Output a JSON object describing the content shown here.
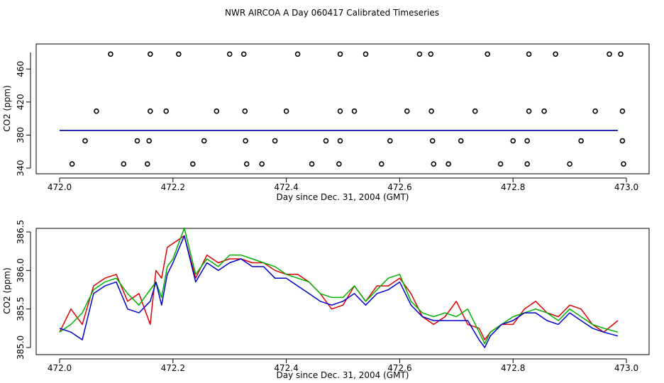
{
  "title": "NWR AIRCOA A  Day 060417  Calibrated Timeseries",
  "colors": {
    "red": "#dd0000",
    "green": "#00b000",
    "blue": "#0000cc",
    "black": "#000000"
  },
  "chart_data": [
    {
      "type": "scatter",
      "xlabel": "Day since Dec. 31, 2004 (GMT)",
      "ylabel": "CO2 (ppm)",
      "xlim": [
        472.0,
        473.0
      ],
      "ylim": [
        340,
        480
      ],
      "xticks": [
        "472.0",
        "472.2",
        "472.4",
        "472.6",
        "472.8",
        "473.0"
      ],
      "yticks": [
        "340",
        "380",
        "420",
        "460"
      ],
      "grid": false,
      "markers": {
        "x": [
          472.09,
          472.16,
          472.21,
          472.3,
          472.325,
          472.42,
          472.495,
          472.54,
          472.635,
          472.655,
          472.755,
          472.828,
          472.875,
          472.97,
          472.99,
          472.065,
          472.16,
          472.188,
          472.277,
          472.327,
          472.4,
          472.495,
          472.52,
          472.613,
          472.656,
          472.733,
          472.828,
          472.855,
          472.945,
          472.993,
          472.045,
          472.137,
          472.158,
          472.255,
          472.328,
          472.38,
          472.47,
          472.495,
          472.583,
          472.658,
          472.708,
          472.8,
          472.825,
          472.92,
          472.993,
          472.022,
          472.113,
          472.155,
          472.235,
          472.33,
          472.357,
          472.445,
          472.493,
          472.568,
          472.66,
          472.686,
          472.778,
          472.825,
          472.9,
          472.995
        ],
        "y": [
          478,
          478,
          478,
          478,
          478,
          478,
          478,
          478,
          478,
          478,
          478,
          478,
          478,
          478,
          478,
          409,
          409,
          409,
          409,
          409,
          409,
          409,
          409,
          409,
          409,
          409,
          409,
          409,
          409,
          409,
          373,
          373,
          373,
          373,
          373,
          373,
          373,
          373,
          373,
          373,
          373,
          373,
          373,
          373,
          373,
          345,
          345,
          345,
          345,
          345,
          345,
          345,
          345,
          345,
          345,
          345,
          345,
          345,
          345,
          345
        ]
      },
      "series": [
        {
          "color": "#dd0000",
          "x": [
            472.0,
            472.985
          ],
          "y": [
            385.6,
            385.6
          ]
        },
        {
          "color": "#00b000",
          "x": [
            472.0,
            472.985
          ],
          "y": [
            385.6,
            385.6
          ]
        },
        {
          "color": "#0000cc",
          "x": [
            472.0,
            472.985
          ],
          "y": [
            385.6,
            385.6
          ]
        }
      ]
    },
    {
      "type": "line",
      "xlabel": "Day since Dec. 31, 2004 (GMT)",
      "ylabel": "CO2 (ppm)",
      "xlim": [
        472.0,
        473.0
      ],
      "ylim": [
        385.0,
        386.5
      ],
      "xticks": [
        "472.0",
        "472.2",
        "472.4",
        "472.6",
        "472.8",
        "473.0"
      ],
      "yticks": [
        "385.0",
        "385.5",
        "386.0",
        "386.5"
      ],
      "grid": false,
      "series": [
        {
          "color": "#dd0000",
          "x": [
            472.0,
            472.02,
            472.04,
            472.06,
            472.08,
            472.1,
            472.12,
            472.14,
            472.16,
            472.17,
            472.18,
            472.19,
            472.2,
            472.22,
            472.24,
            472.26,
            472.28,
            472.3,
            472.32,
            472.34,
            472.36,
            472.38,
            472.4,
            472.42,
            472.44,
            472.46,
            472.48,
            472.5,
            472.52,
            472.54,
            472.56,
            472.58,
            472.6,
            472.62,
            472.64,
            472.66,
            472.68,
            472.7,
            472.72,
            472.74,
            472.75,
            472.76,
            472.78,
            472.8,
            472.82,
            472.84,
            472.86,
            472.88,
            472.9,
            472.92,
            472.94,
            472.96,
            472.985
          ],
          "y": [
            385.2,
            385.5,
            385.3,
            385.8,
            385.9,
            385.95,
            385.6,
            385.7,
            385.3,
            386.0,
            385.9,
            386.3,
            386.35,
            386.45,
            385.9,
            386.2,
            386.1,
            386.15,
            386.15,
            386.1,
            386.1,
            386.0,
            385.95,
            385.95,
            385.85,
            385.7,
            385.5,
            385.55,
            385.8,
            385.6,
            385.8,
            385.8,
            385.9,
            385.7,
            385.4,
            385.3,
            385.4,
            385.6,
            385.3,
            385.25,
            385.1,
            385.2,
            385.3,
            385.3,
            385.5,
            385.6,
            385.45,
            385.4,
            385.55,
            385.5,
            385.3,
            385.2,
            385.35
          ]
        },
        {
          "color": "#00b000",
          "x": [
            472.0,
            472.02,
            472.04,
            472.06,
            472.08,
            472.1,
            472.12,
            472.14,
            472.16,
            472.17,
            472.18,
            472.19,
            472.2,
            472.22,
            472.24,
            472.26,
            472.28,
            472.3,
            472.32,
            472.34,
            472.36,
            472.38,
            472.4,
            472.42,
            472.44,
            472.46,
            472.48,
            472.5,
            472.52,
            472.54,
            472.56,
            472.58,
            472.6,
            472.62,
            472.64,
            472.66,
            472.68,
            472.7,
            472.72,
            472.74,
            472.75,
            472.76,
            472.78,
            472.8,
            472.82,
            472.84,
            472.86,
            472.88,
            472.9,
            472.92,
            472.94,
            472.96,
            472.985
          ],
          "y": [
            385.2,
            385.3,
            385.45,
            385.75,
            385.85,
            385.9,
            385.7,
            385.55,
            385.75,
            385.85,
            385.65,
            386.05,
            386.15,
            386.55,
            385.95,
            386.15,
            386.05,
            386.2,
            386.2,
            386.15,
            386.1,
            386.05,
            385.95,
            385.9,
            385.85,
            385.7,
            385.65,
            385.65,
            385.8,
            385.6,
            385.75,
            385.9,
            385.95,
            385.6,
            385.45,
            385.4,
            385.45,
            385.4,
            385.5,
            385.2,
            385.05,
            385.2,
            385.3,
            385.4,
            385.45,
            385.5,
            385.45,
            385.35,
            385.5,
            385.4,
            385.3,
            385.25,
            385.2
          ]
        },
        {
          "color": "#0000cc",
          "x": [
            472.0,
            472.02,
            472.04,
            472.06,
            472.08,
            472.1,
            472.12,
            472.14,
            472.16,
            472.17,
            472.18,
            472.19,
            472.2,
            472.22,
            472.24,
            472.26,
            472.28,
            472.3,
            472.32,
            472.34,
            472.36,
            472.38,
            472.4,
            472.42,
            472.44,
            472.46,
            472.48,
            472.5,
            472.52,
            472.54,
            472.56,
            472.58,
            472.6,
            472.62,
            472.64,
            472.66,
            472.68,
            472.7,
            472.72,
            472.74,
            472.75,
            472.76,
            472.78,
            472.8,
            472.82,
            472.84,
            472.86,
            472.88,
            472.9,
            472.92,
            472.94,
            472.96,
            472.985
          ],
          "y": [
            385.25,
            385.2,
            385.1,
            385.7,
            385.8,
            385.85,
            385.5,
            385.45,
            385.6,
            385.85,
            385.55,
            385.95,
            386.1,
            386.45,
            385.85,
            386.1,
            386.0,
            386.1,
            386.15,
            386.05,
            386.05,
            385.9,
            385.9,
            385.8,
            385.7,
            385.6,
            385.55,
            385.6,
            385.7,
            385.55,
            385.7,
            385.75,
            385.85,
            385.55,
            385.4,
            385.35,
            385.35,
            385.35,
            385.35,
            385.1,
            385.0,
            385.15,
            385.3,
            385.35,
            385.45,
            385.45,
            385.35,
            385.3,
            385.45,
            385.35,
            385.25,
            385.2,
            385.15
          ]
        }
      ]
    }
  ]
}
